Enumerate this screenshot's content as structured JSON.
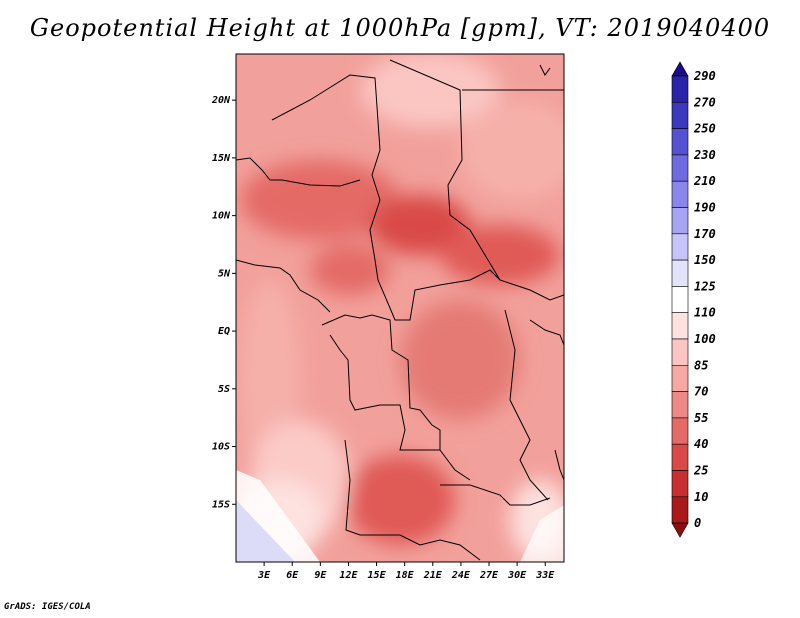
{
  "title": "Geopotential Height at 1000hPa [gpm], VT: 2019040400",
  "credit": "GrADS: IGES/COLA",
  "map": {
    "lon_range": [
      0,
      35
    ],
    "lat_range": [
      -20,
      24
    ],
    "lat_ticks": [
      {
        "label": "20N",
        "value": 20
      },
      {
        "label": "15N",
        "value": 15
      },
      {
        "label": "10N",
        "value": 10
      },
      {
        "label": "5N",
        "value": 5
      },
      {
        "label": "EQ",
        "value": 0
      },
      {
        "label": "5S",
        "value": -5
      },
      {
        "label": "10S",
        "value": -10
      },
      {
        "label": "15S",
        "value": -15
      }
    ],
    "lon_ticks": [
      {
        "label": "3E",
        "value": 3
      },
      {
        "label": "6E",
        "value": 6
      },
      {
        "label": "9E",
        "value": 9
      },
      {
        "label": "12E",
        "value": 12
      },
      {
        "label": "15E",
        "value": 15
      },
      {
        "label": "18E",
        "value": 18
      },
      {
        "label": "21E",
        "value": 21
      },
      {
        "label": "24E",
        "value": 24
      },
      {
        "label": "27E",
        "value": 27
      },
      {
        "label": "30E",
        "value": 30
      },
      {
        "label": "33E",
        "value": 33
      }
    ]
  },
  "colorbar": {
    "levels": [
      "290",
      "270",
      "250",
      "230",
      "210",
      "190",
      "170",
      "150",
      "125",
      "110",
      "100",
      "85",
      "70",
      "55",
      "40",
      "25",
      "10",
      "0"
    ],
    "colors": [
      "#1a0a8c",
      "#2a22a8",
      "#3d39bf",
      "#5650d2",
      "#6f6ae0",
      "#8a86ea",
      "#a7a4f2",
      "#c6c4f8",
      "#e4e3fc",
      "#ffffff",
      "#fde2e0",
      "#fbc6c2",
      "#f6a8a3",
      "#ee8a85",
      "#e46a66",
      "#d94a47",
      "#c8302f",
      "#aa1a1a",
      "#8c0e0e"
    ]
  }
}
